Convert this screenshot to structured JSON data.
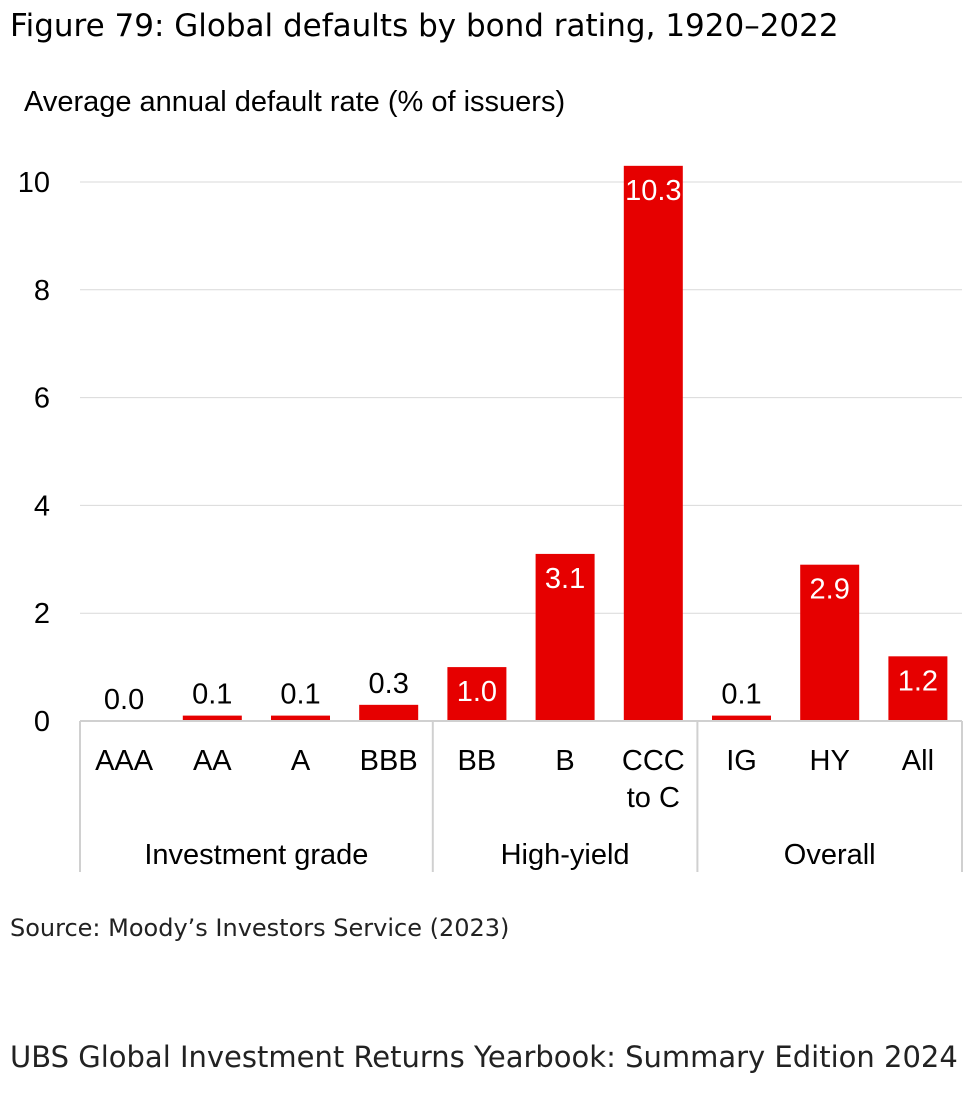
{
  "figure": {
    "title": "Figure 79: Global defaults by bond rating, 1920–2022",
    "source": "Source: Moody’s Investors Service (2023)",
    "footer": "UBS Global Investment Returns Yearbook: Summary Edition 2024"
  },
  "chart_data": {
    "type": "bar",
    "title": "",
    "ylabel": "Average annual default rate (% of issuers)",
    "xlabel": "",
    "ylim": [
      0,
      10
    ],
    "yticks": [
      0,
      2,
      4,
      6,
      8,
      10
    ],
    "grid": true,
    "legend": "none",
    "bar_color": "#e60000",
    "categories": [
      "AAA",
      "AA",
      "A",
      "BBB",
      "BB",
      "B",
      "CCC\nto C",
      "IG",
      "HY",
      "All"
    ],
    "values": [
      0.0,
      0.1,
      0.1,
      0.3,
      1.0,
      3.1,
      10.3,
      0.1,
      2.9,
      1.2
    ],
    "data_labels": [
      "0.0",
      "0.1",
      "0.1",
      "0.3",
      "1.0",
      "3.1",
      "10.3",
      "0.1",
      "2.9",
      "1.2"
    ],
    "groups": [
      {
        "name": "Investment grade",
        "start": 0,
        "end": 3
      },
      {
        "name": "High-yield",
        "start": 4,
        "end": 6
      },
      {
        "name": "Overall",
        "start": 7,
        "end": 9
      }
    ]
  }
}
